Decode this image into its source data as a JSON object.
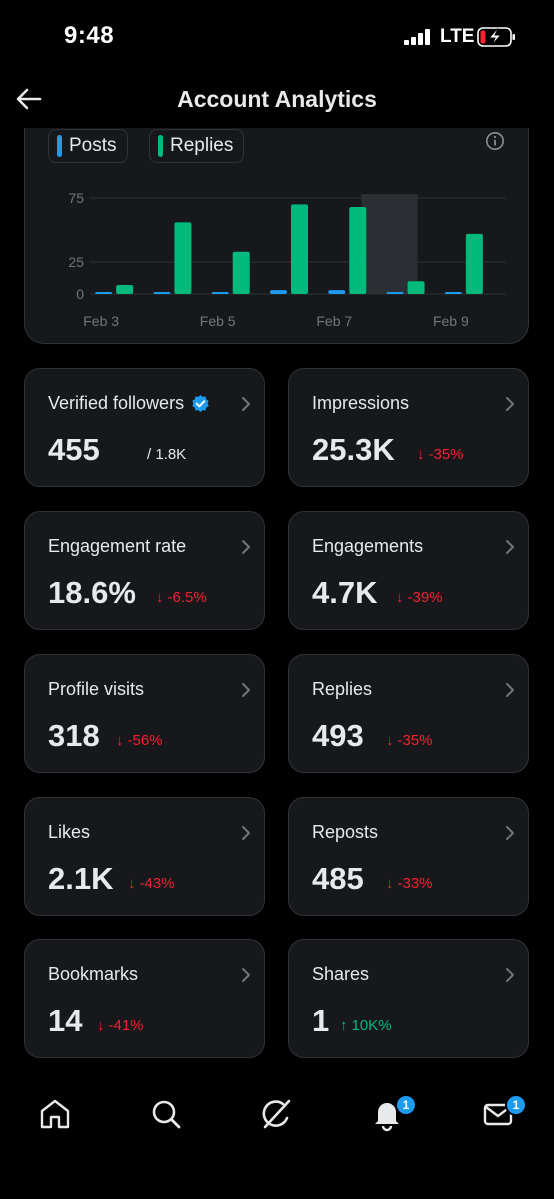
{
  "status": {
    "time": "9:48",
    "network": "LTE"
  },
  "header": {
    "title": "Account Analytics"
  },
  "chart_data": {
    "type": "bar",
    "categories": [
      "Feb 3",
      "",
      "Feb 5",
      "",
      "Feb 7",
      "",
      "Feb 9"
    ],
    "x_tick_labels": [
      "Feb 3",
      "Feb 5",
      "Feb 7",
      "Feb 9"
    ],
    "y_tick_labels": [
      "75",
      "25",
      "0"
    ],
    "ylim": [
      0,
      80
    ],
    "series": [
      {
        "name": "Posts",
        "color": "#1d9bf0",
        "values": [
          0,
          1,
          1,
          3,
          3,
          1,
          1
        ]
      },
      {
        "name": "Replies",
        "color": "#00ba7c",
        "values": [
          7,
          56,
          33,
          70,
          68,
          10,
          47
        ]
      }
    ],
    "highlight_index": 5,
    "grid": true
  },
  "legend": [
    {
      "label": "Posts",
      "color": "#1d9bf0"
    },
    {
      "label": "Replies",
      "color": "#00ba7c"
    }
  ],
  "stats": {
    "verified_followers": {
      "label": "Verified followers",
      "value": "455",
      "sub": "/ 1.8K"
    },
    "impressions": {
      "label": "Impressions",
      "value": "25.3K",
      "arrow": "↓",
      "change": "-35%"
    },
    "engagement_rate": {
      "label": "Engagement rate",
      "value": "18.6%",
      "arrow": "↓",
      "change": "-6.5%"
    },
    "engagements": {
      "label": "Engagements",
      "value": "4.7K",
      "arrow": "↓",
      "change": "-39%"
    },
    "profile_visits": {
      "label": "Profile visits",
      "value": "318",
      "arrow": "↓",
      "change": "-56%"
    },
    "replies": {
      "label": "Replies",
      "value": "493",
      "arrow": "↓",
      "change": "-35%"
    },
    "likes": {
      "label": "Likes",
      "value": "2.1K",
      "arrow": "↓",
      "change": "-43%"
    },
    "reposts": {
      "label": "Reposts",
      "value": "485",
      "arrow": "↓",
      "change": "-33%"
    },
    "bookmarks": {
      "label": "Bookmarks",
      "value": "14",
      "arrow": "↓",
      "change": "-41%"
    },
    "shares": {
      "label": "Shares",
      "value": "1",
      "arrow": "↑",
      "change": "10K%"
    }
  },
  "nav": {
    "notifications_badge": "1",
    "messages_badge": "1"
  },
  "colors": {
    "accent": "#1d9bf0",
    "positive": "#00ba7c",
    "negative": "#f4212e",
    "card": "#16181c"
  }
}
